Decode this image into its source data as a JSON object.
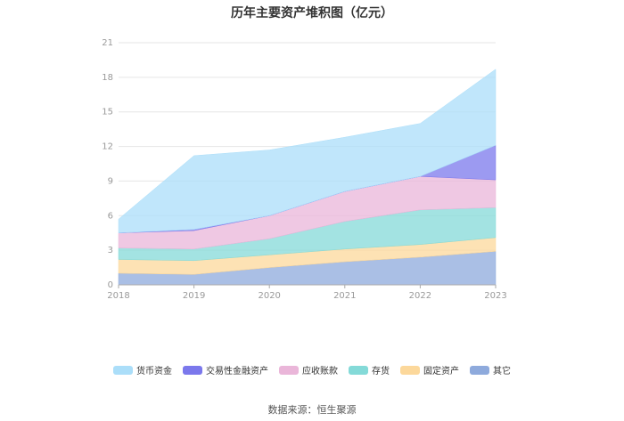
{
  "chart_data": {
    "type": "area",
    "stacked": true,
    "title": "历年主要资产堆积图（亿元）",
    "categories": [
      "2018",
      "2019",
      "2020",
      "2021",
      "2022",
      "2023"
    ],
    "ylim": [
      0,
      21
    ],
    "yticks": [
      "0",
      "3",
      "6",
      "9",
      "12",
      "15",
      "18",
      "21"
    ],
    "legend_position": "bottom",
    "series": [
      {
        "name": "其它",
        "color": "#8eaadc",
        "values": [
          1.0,
          0.9,
          1.5,
          2.0,
          2.4,
          2.9
        ]
      },
      {
        "name": "固定资产",
        "color": "#fcd89b",
        "values": [
          1.2,
          1.2,
          1.1,
          1.1,
          1.1,
          1.2
        ]
      },
      {
        "name": "存货",
        "color": "#84dad8",
        "values": [
          1.0,
          1.0,
          1.4,
          2.4,
          3.0,
          2.6
        ]
      },
      {
        "name": "应收账款",
        "color": "#eab6d9",
        "values": [
          1.3,
          1.6,
          2.0,
          2.6,
          2.9,
          2.4
        ]
      },
      {
        "name": "交易性金融资产",
        "color": "#7b78ec",
        "values": [
          0.0,
          0.1,
          0.0,
          0.0,
          0.0,
          3.0
        ]
      },
      {
        "name": "货币资金",
        "color": "#abdef9",
        "values": [
          1.2,
          6.4,
          5.7,
          4.7,
          4.6,
          6.6
        ]
      }
    ]
  },
  "source": "数据来源：恒生聚源"
}
